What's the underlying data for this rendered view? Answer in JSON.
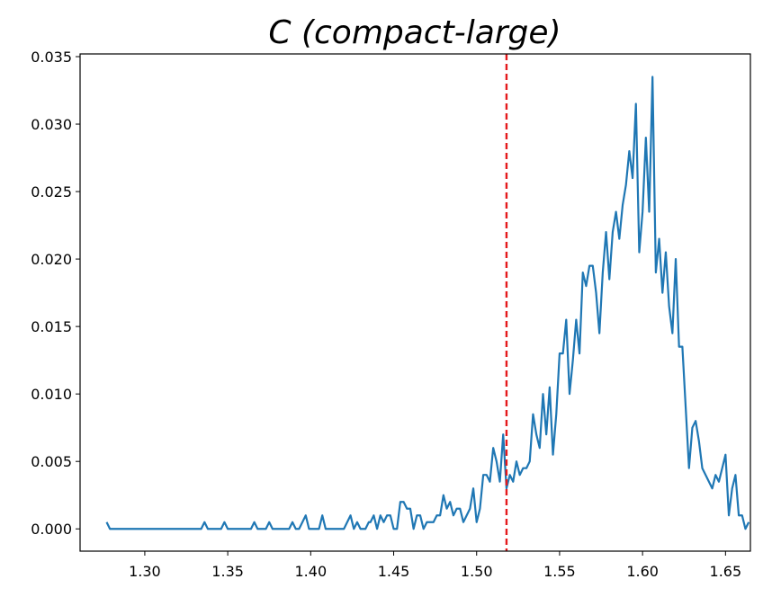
{
  "chart_data": {
    "type": "line",
    "title": "C (compact-large)",
    "xlabel": "",
    "ylabel": "",
    "xlim": [
      1.261,
      1.665
    ],
    "ylim": [
      -0.00165,
      0.0352
    ],
    "x_ticks": [
      {
        "value": 1.3,
        "label": "1.30"
      },
      {
        "value": 1.35,
        "label": "1.35"
      },
      {
        "value": 1.4,
        "label": "1.40"
      },
      {
        "value": 1.45,
        "label": "1.45"
      },
      {
        "value": 1.5,
        "label": "1.50"
      },
      {
        "value": 1.55,
        "label": "1.55"
      },
      {
        "value": 1.6,
        "label": "1.60"
      },
      {
        "value": 1.65,
        "label": "1.65"
      }
    ],
    "y_ticks": [
      {
        "value": 0.0,
        "label": "0.000"
      },
      {
        "value": 0.005,
        "label": "0.005"
      },
      {
        "value": 0.01,
        "label": "0.010"
      },
      {
        "value": 0.015,
        "label": "0.015"
      },
      {
        "value": 0.02,
        "label": "0.020"
      },
      {
        "value": 0.025,
        "label": "0.025"
      },
      {
        "value": 0.03,
        "label": "0.030"
      },
      {
        "value": 0.035,
        "label": "0.035"
      }
    ],
    "grid": false,
    "reference_line": {
      "orientation": "vertical",
      "x": 1.518,
      "color": "#e41a1c",
      "style": "dashed"
    },
    "series": [
      {
        "color": "#1f77b4",
        "points": [
          [
            1.277,
            0.0005
          ],
          [
            1.279,
            0.0
          ],
          [
            1.3,
            0.0
          ],
          [
            1.334,
            0.0
          ],
          [
            1.336,
            0.0005
          ],
          [
            1.338,
            0.0
          ],
          [
            1.346,
            0.0
          ],
          [
            1.348,
            0.0005
          ],
          [
            1.35,
            0.0
          ],
          [
            1.364,
            0.0
          ],
          [
            1.366,
            0.0005
          ],
          [
            1.368,
            0.0
          ],
          [
            1.373,
            0.0
          ],
          [
            1.375,
            0.0005
          ],
          [
            1.377,
            0.0
          ],
          [
            1.387,
            0.0
          ],
          [
            1.389,
            0.0005
          ],
          [
            1.391,
            0.0
          ],
          [
            1.393,
            0.0
          ],
          [
            1.397,
            0.001
          ],
          [
            1.399,
            0.0
          ],
          [
            1.405,
            0.0
          ],
          [
            1.407,
            0.001
          ],
          [
            1.409,
            0.0
          ],
          [
            1.42,
            0.0
          ],
          [
            1.424,
            0.001
          ],
          [
            1.426,
            0.0
          ],
          [
            1.428,
            0.0005
          ],
          [
            1.43,
            0.0
          ],
          [
            1.433,
            0.0
          ],
          [
            1.435,
            0.0005
          ],
          [
            1.436,
            0.0005
          ],
          [
            1.438,
            0.001
          ],
          [
            1.44,
            0.0
          ],
          [
            1.442,
            0.001
          ],
          [
            1.444,
            0.0005
          ],
          [
            1.446,
            0.001
          ],
          [
            1.448,
            0.001
          ],
          [
            1.45,
            0.0
          ],
          [
            1.452,
            0.0
          ],
          [
            1.454,
            0.002
          ],
          [
            1.456,
            0.002
          ],
          [
            1.458,
            0.0015
          ],
          [
            1.46,
            0.0015
          ],
          [
            1.462,
            0.0
          ],
          [
            1.464,
            0.001
          ],
          [
            1.466,
            0.001
          ],
          [
            1.468,
            0.0
          ],
          [
            1.47,
            0.0005
          ],
          [
            1.472,
            0.0005
          ],
          [
            1.474,
            0.0005
          ],
          [
            1.476,
            0.001
          ],
          [
            1.478,
            0.001
          ],
          [
            1.48,
            0.0025
          ],
          [
            1.482,
            0.0015
          ],
          [
            1.484,
            0.002
          ],
          [
            1.486,
            0.001
          ],
          [
            1.488,
            0.0015
          ],
          [
            1.49,
            0.0015
          ],
          [
            1.492,
            0.0005
          ],
          [
            1.494,
            0.001
          ],
          [
            1.496,
            0.0015
          ],
          [
            1.498,
            0.003
          ],
          [
            1.5,
            0.0005
          ],
          [
            1.502,
            0.0015
          ],
          [
            1.504,
            0.004
          ],
          [
            1.506,
            0.004
          ],
          [
            1.508,
            0.0035
          ],
          [
            1.51,
            0.006
          ],
          [
            1.512,
            0.005
          ],
          [
            1.514,
            0.0035
          ],
          [
            1.516,
            0.007
          ],
          [
            1.518,
            0.003
          ],
          [
            1.52,
            0.004
          ],
          [
            1.522,
            0.0035
          ],
          [
            1.524,
            0.005
          ],
          [
            1.526,
            0.004
          ],
          [
            1.528,
            0.0045
          ],
          [
            1.53,
            0.0045
          ],
          [
            1.532,
            0.005
          ],
          [
            1.534,
            0.0085
          ],
          [
            1.536,
            0.007
          ],
          [
            1.538,
            0.006
          ],
          [
            1.54,
            0.01
          ],
          [
            1.542,
            0.007
          ],
          [
            1.544,
            0.0105
          ],
          [
            1.546,
            0.0055
          ],
          [
            1.548,
            0.0085
          ],
          [
            1.55,
            0.013
          ],
          [
            1.552,
            0.013
          ],
          [
            1.554,
            0.0155
          ],
          [
            1.556,
            0.01
          ],
          [
            1.558,
            0.0125
          ],
          [
            1.56,
            0.0155
          ],
          [
            1.562,
            0.013
          ],
          [
            1.564,
            0.019
          ],
          [
            1.566,
            0.018
          ],
          [
            1.568,
            0.0195
          ],
          [
            1.57,
            0.0195
          ],
          [
            1.572,
            0.0175
          ],
          [
            1.574,
            0.0145
          ],
          [
            1.576,
            0.019
          ],
          [
            1.578,
            0.022
          ],
          [
            1.58,
            0.0185
          ],
          [
            1.582,
            0.022
          ],
          [
            1.584,
            0.0235
          ],
          [
            1.586,
            0.0215
          ],
          [
            1.588,
            0.024
          ],
          [
            1.59,
            0.0255
          ],
          [
            1.592,
            0.028
          ],
          [
            1.594,
            0.026
          ],
          [
            1.596,
            0.0315
          ],
          [
            1.598,
            0.0205
          ],
          [
            1.6,
            0.0235
          ],
          [
            1.602,
            0.029
          ],
          [
            1.604,
            0.0235
          ],
          [
            1.606,
            0.0335
          ],
          [
            1.608,
            0.019
          ],
          [
            1.61,
            0.0215
          ],
          [
            1.612,
            0.0175
          ],
          [
            1.614,
            0.0205
          ],
          [
            1.616,
            0.0165
          ],
          [
            1.618,
            0.0145
          ],
          [
            1.62,
            0.02
          ],
          [
            1.622,
            0.0135
          ],
          [
            1.624,
            0.0135
          ],
          [
            1.626,
            0.009
          ],
          [
            1.628,
            0.0045
          ],
          [
            1.63,
            0.0075
          ],
          [
            1.632,
            0.008
          ],
          [
            1.634,
            0.0065
          ],
          [
            1.636,
            0.0045
          ],
          [
            1.638,
            0.004
          ],
          [
            1.64,
            0.0035
          ],
          [
            1.642,
            0.003
          ],
          [
            1.644,
            0.004
          ],
          [
            1.646,
            0.0035
          ],
          [
            1.648,
            0.0045
          ],
          [
            1.65,
            0.0055
          ],
          [
            1.652,
            0.001
          ],
          [
            1.654,
            0.003
          ],
          [
            1.656,
            0.004
          ],
          [
            1.658,
            0.001
          ],
          [
            1.66,
            0.001
          ],
          [
            1.662,
            0.0
          ],
          [
            1.664,
            0.0005
          ]
        ]
      }
    ]
  }
}
